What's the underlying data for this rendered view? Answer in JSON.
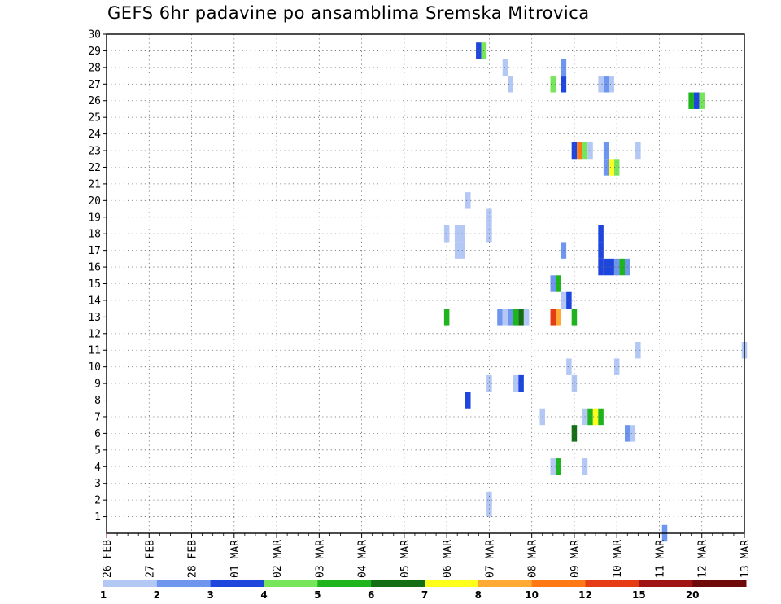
{
  "chart_data": {
    "type": "heatmap",
    "title": "GEFS 6hr padavine po ansamblima Sremska Mitrovica",
    "xlabel": "",
    "ylabel": "",
    "x_tick_labels": [
      "26 FEB",
      "27 FEB",
      "28 FEB",
      "01 MAR",
      "02 MAR",
      "03 MAR",
      "04 MAR",
      "05 MAR",
      "06 MAR",
      "07 MAR",
      "08 MAR",
      "09 MAR",
      "10 MAR",
      "11 MAR",
      "12 MAR",
      "13 MAR"
    ],
    "x_range": [
      0,
      60
    ],
    "x_step_hours": 6,
    "ylim": [
      0,
      30
    ],
    "y_ticks": [
      1,
      2,
      3,
      4,
      5,
      6,
      7,
      8,
      9,
      10,
      11,
      12,
      13,
      14,
      15,
      16,
      17,
      18,
      19,
      20,
      21,
      22,
      23,
      24,
      25,
      26,
      27,
      28,
      29,
      30
    ],
    "grid": true,
    "colorbar": {
      "labels": [
        "1",
        "2",
        "3",
        "4",
        "5",
        "6",
        "7",
        "8",
        "10",
        "12",
        "15",
        "20"
      ],
      "colors": [
        "#b4c8f5",
        "#6e96ee",
        "#1e46dc",
        "#78e65a",
        "#1eb41e",
        "#146e14",
        "#ffff1e",
        "#ffaa32",
        "#ff7814",
        "#e63c14",
        "#a01414",
        "#6e0a0a"
      ]
    },
    "cells": [
      {
        "x": 52.5,
        "y": 0,
        "c": 2
      },
      {
        "x": 36,
        "y": 2,
        "c": 1
      },
      {
        "x": 36,
        "y": 1.5,
        "c": 1
      },
      {
        "x": 42,
        "y": 4,
        "c": 1
      },
      {
        "x": 42.5,
        "y": 4,
        "c": 5
      },
      {
        "x": 45,
        "y": 4,
        "c": 1
      },
      {
        "x": 44,
        "y": 6,
        "c": 6
      },
      {
        "x": 49,
        "y": 6,
        "c": 2
      },
      {
        "x": 49.5,
        "y": 6,
        "c": 1
      },
      {
        "x": 41,
        "y": 7,
        "c": 1
      },
      {
        "x": 45,
        "y": 7,
        "c": 1
      },
      {
        "x": 45.5,
        "y": 7,
        "c": 5
      },
      {
        "x": 46,
        "y": 7,
        "c": 7
      },
      {
        "x": 46.5,
        "y": 7,
        "c": 5
      },
      {
        "x": 34,
        "y": 8,
        "c": 3
      },
      {
        "x": 36,
        "y": 9,
        "c": 1
      },
      {
        "x": 38.5,
        "y": 9,
        "c": 1
      },
      {
        "x": 39,
        "y": 9,
        "c": 3
      },
      {
        "x": 44,
        "y": 9,
        "c": 1
      },
      {
        "x": 43.5,
        "y": 10,
        "c": 1
      },
      {
        "x": 48,
        "y": 10,
        "c": 1
      },
      {
        "x": 50,
        "y": 11,
        "c": 1
      },
      {
        "x": 60,
        "y": 11,
        "c": 1
      },
      {
        "x": 32,
        "y": 13,
        "c": 5
      },
      {
        "x": 37,
        "y": 13,
        "c": 2
      },
      {
        "x": 37.5,
        "y": 13,
        "c": 1
      },
      {
        "x": 38,
        "y": 13,
        "c": 2
      },
      {
        "x": 38.5,
        "y": 13,
        "c": 5
      },
      {
        "x": 39,
        "y": 13,
        "c": 6
      },
      {
        "x": 39.5,
        "y": 13,
        "c": 1
      },
      {
        "x": 42,
        "y": 13,
        "c": 10
      },
      {
        "x": 42.5,
        "y": 13,
        "c": 8
      },
      {
        "x": 44,
        "y": 13,
        "c": 5
      },
      {
        "x": 43,
        "y": 14,
        "c": 1
      },
      {
        "x": 43.5,
        "y": 14,
        "c": 3
      },
      {
        "x": 42,
        "y": 15,
        "c": 2
      },
      {
        "x": 42.5,
        "y": 15,
        "c": 5
      },
      {
        "x": 46.5,
        "y": 16,
        "c": 3
      },
      {
        "x": 47,
        "y": 16,
        "c": 3
      },
      {
        "x": 47.5,
        "y": 16,
        "c": 3
      },
      {
        "x": 48,
        "y": 16,
        "c": 2
      },
      {
        "x": 48.5,
        "y": 16,
        "c": 5
      },
      {
        "x": 49,
        "y": 16,
        "c": 2
      },
      {
        "x": 33,
        "y": 17,
        "c": 1
      },
      {
        "x": 33.5,
        "y": 17,
        "c": 1
      },
      {
        "x": 43,
        "y": 17,
        "c": 2
      },
      {
        "x": 46.5,
        "y": 17,
        "c": 3
      },
      {
        "x": 32,
        "y": 18,
        "c": 1
      },
      {
        "x": 33,
        "y": 18,
        "c": 1
      },
      {
        "x": 33.5,
        "y": 18,
        "c": 1
      },
      {
        "x": 46.5,
        "y": 18,
        "c": 3
      },
      {
        "x": 36,
        "y": 18,
        "c": 1
      },
      {
        "x": 36,
        "y": 19,
        "c": 1
      },
      {
        "x": 34,
        "y": 20,
        "c": 1
      },
      {
        "x": 47,
        "y": 22,
        "c": 2
      },
      {
        "x": 47.5,
        "y": 22,
        "c": 7
      },
      {
        "x": 48,
        "y": 22,
        "c": 4
      },
      {
        "x": 44,
        "y": 23,
        "c": 3
      },
      {
        "x": 44.5,
        "y": 23,
        "c": 9
      },
      {
        "x": 45,
        "y": 23,
        "c": 4
      },
      {
        "x": 45.5,
        "y": 23,
        "c": 1
      },
      {
        "x": 47,
        "y": 23,
        "c": 2
      },
      {
        "x": 50,
        "y": 23,
        "c": 1
      },
      {
        "x": 55,
        "y": 26,
        "c": 5
      },
      {
        "x": 55.5,
        "y": 26,
        "c": 3
      },
      {
        "x": 56,
        "y": 26,
        "c": 4
      },
      {
        "x": 38,
        "y": 27,
        "c": 1
      },
      {
        "x": 42,
        "y": 27,
        "c": 4
      },
      {
        "x": 43,
        "y": 27,
        "c": 3
      },
      {
        "x": 46.5,
        "y": 27,
        "c": 1
      },
      {
        "x": 47,
        "y": 27,
        "c": 2
      },
      {
        "x": 47.5,
        "y": 27,
        "c": 1
      },
      {
        "x": 37.5,
        "y": 28,
        "c": 1
      },
      {
        "x": 43,
        "y": 28,
        "c": 2
      },
      {
        "x": 35,
        "y": 29,
        "c": 3
      },
      {
        "x": 35.5,
        "y": 29,
        "c": 4
      }
    ]
  }
}
